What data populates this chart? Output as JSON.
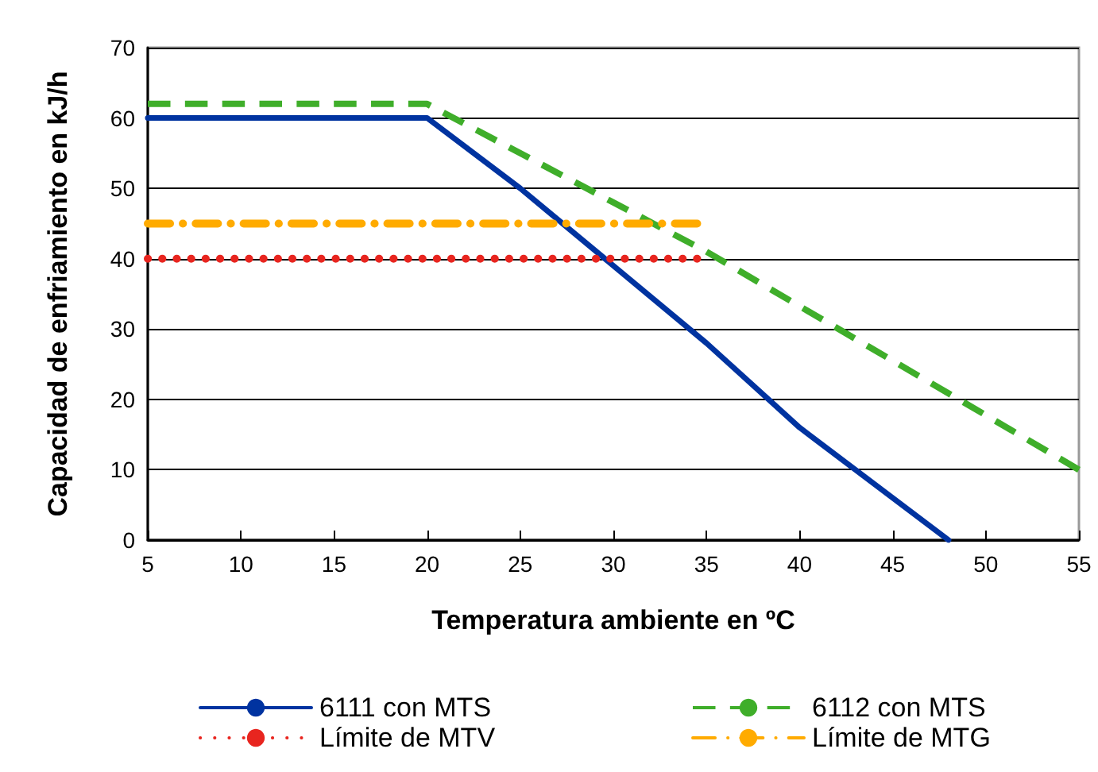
{
  "chart_data": {
    "type": "line",
    "xlabel": "Temperatura ambiente en ºC",
    "ylabel": "Capacidad de enfriamiento en kJ/h",
    "xlim": [
      5,
      55
    ],
    "xticks": [
      5,
      10,
      15,
      20,
      25,
      30,
      35,
      40,
      45,
      50,
      55
    ],
    "ylim": [
      0,
      70
    ],
    "yticks": [
      0,
      10,
      20,
      30,
      40,
      50,
      60,
      70
    ],
    "grid": "y",
    "legend": "bottom",
    "marker": "none",
    "series": [
      {
        "name": "6111 con MTS",
        "color": "#0033a0",
        "line_style": "solid",
        "x": [
          5,
          20,
          25,
          35,
          40,
          48
        ],
        "values": [
          60,
          60,
          50,
          28,
          16,
          0
        ]
      },
      {
        "name": "6112 con MTS",
        "color": "#3fae2a",
        "line_style": "dashed",
        "x": [
          5,
          20,
          35,
          55
        ],
        "values": [
          62,
          62,
          41,
          10
        ]
      },
      {
        "name": "Límite de MTV",
        "color": "#e8251f",
        "line_style": "dotted",
        "x": [
          5,
          34.5
        ],
        "values": [
          40,
          40
        ]
      },
      {
        "name": "Límite de MTG",
        "color": "#ffab00",
        "line_style": "dashdot",
        "x": [
          5,
          34.5
        ],
        "values": [
          45,
          45
        ]
      }
    ]
  }
}
